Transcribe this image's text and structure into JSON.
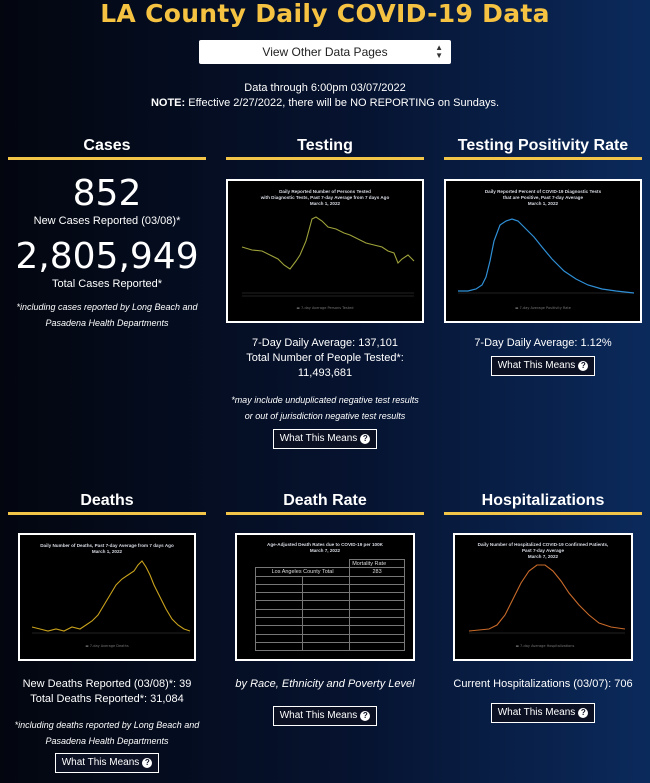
{
  "page": {
    "title": "LA County Daily COVID-19 Data",
    "dropdown": "View Other Data Pages",
    "data_through": "Data through 6:00pm 03/07/2022",
    "note_label": "NOTE:",
    "note_text": " Effective 2/27/2022, there will be NO REPORTING on Sundays."
  },
  "cases": {
    "heading": "Cases",
    "new_value": "852",
    "new_label": "New Cases Reported (03/08)*",
    "total_value": "2,805,949",
    "total_label": "Total Cases Reported*",
    "footnote": "*including cases reported by Long Beach and Pasadena Health Departments"
  },
  "testing": {
    "heading": "Testing",
    "chart_title": [
      "Daily Reported Number of Persons Tested",
      "with Diagnostic Tests, Past 7-day Average from 7 days Ago",
      "March 1, 2022"
    ],
    "avg": "7-Day Daily Average: 137,101",
    "total_label": "Total Number of People Tested*:",
    "total_value": "11,493,681",
    "footnote": "*may include unduplicated negative test results or out of jurisdiction negative test results",
    "button": "What This Means"
  },
  "positivity": {
    "heading": "Testing Positivity Rate",
    "chart_title": [
      "Daily Reported Percent of COVID-19 Diagnostic Tests",
      "that are Positive, Past 7-day Average",
      "March 1, 2022"
    ],
    "avg": "7-Day Daily Average: 1.12%",
    "button": "What This Means"
  },
  "deaths": {
    "heading": "Deaths",
    "chart_title": [
      "Daily Number of Deaths, Past 7-day Average from 7 days Ago",
      "March 1, 2022"
    ],
    "new_line": "New Deaths Reported (03/08)*: 39",
    "total_line": "Total Deaths Reported*: 31,084",
    "footnote": "*including deaths reported by Long Beach and Pasadena Health Departments",
    "button": "What This Means"
  },
  "death_rate": {
    "heading": "Death Rate",
    "chart_title": [
      "Age-Adjusted Death Rates due to COVID-19 per 100K",
      "March 7, 2022"
    ],
    "table_header": "Mortality Rate",
    "table_total_label": "Los Angeles County Total",
    "table_total_value": "283",
    "caption": "by Race, Ethnicity and Poverty Level",
    "button": "What This Means"
  },
  "hospitalizations": {
    "heading": "Hospitalizations",
    "chart_title": [
      "Daily Number of Hospitalized COVID-19 Confirmed Patients,",
      "Past 7-day Average",
      "March 7, 2022"
    ],
    "current": "Current Hospitalizations (03/07): 706",
    "button": "What This Means"
  },
  "colors": {
    "accent": "#f5c242",
    "rule": "#f2c447",
    "testing_line": "#9ea23a",
    "positivity_line": "#2f8fd6",
    "deaths_line": "#c9a21c",
    "hosp_line": "#c96a2a"
  },
  "icons": {
    "help": "question-circle-icon",
    "select": "updown-arrows-icon"
  }
}
